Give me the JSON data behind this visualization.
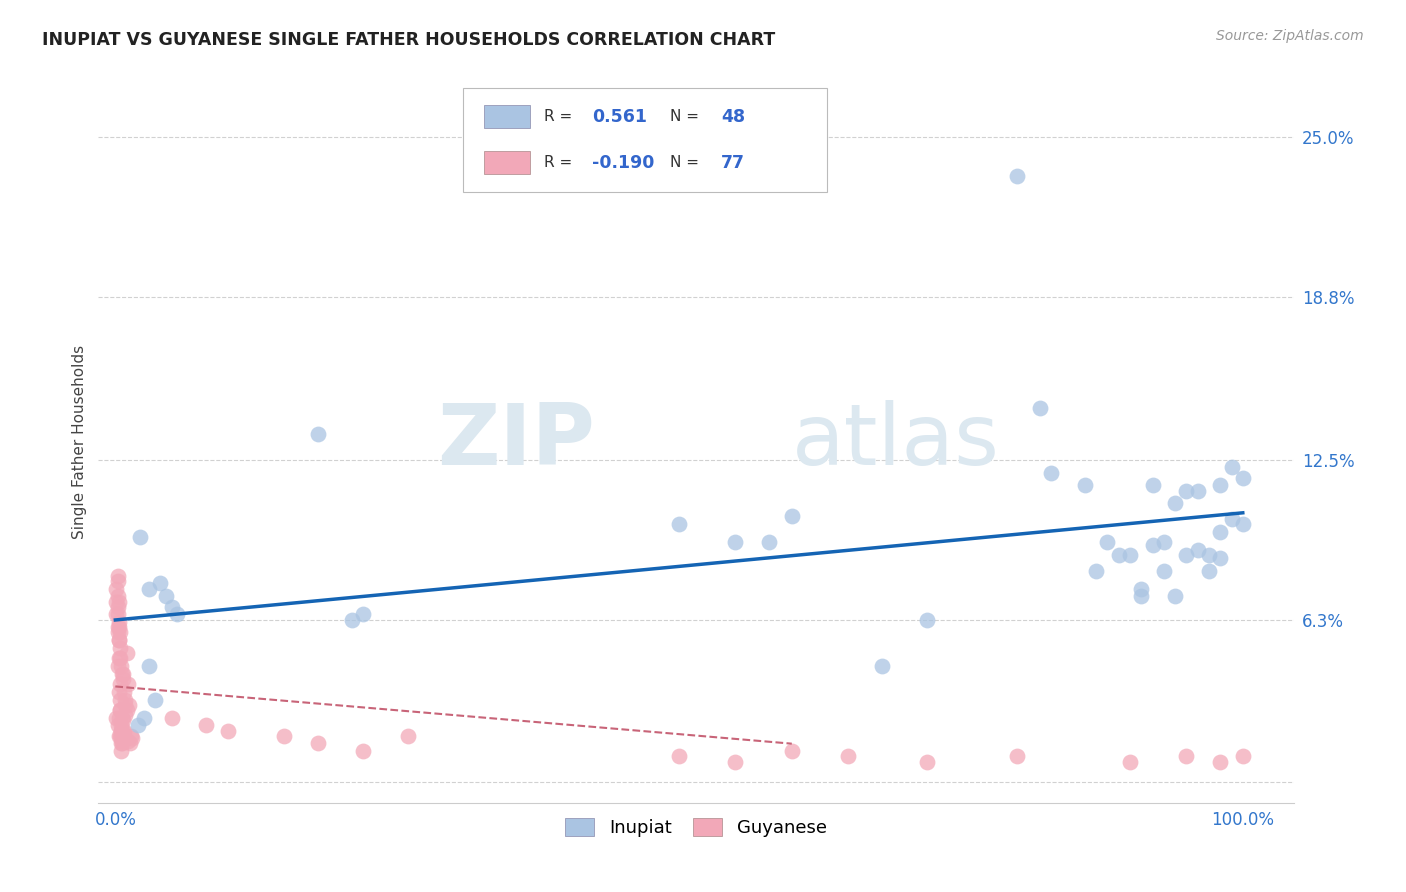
{
  "title": "INUPIAT VS GUYANESE SINGLE FATHER HOUSEHOLDS CORRELATION CHART",
  "source": "Source: ZipAtlas.com",
  "ylabel": "Single Father Households",
  "inupiat_R": "0.561",
  "inupiat_N": "48",
  "guyanese_R": "-0.190",
  "guyanese_N": "77",
  "inupiat_color": "#aac4e2",
  "guyanese_color": "#f2a8b8",
  "inupiat_line_color": "#1464b4",
  "guyanese_line_color": "#c86478",
  "background_color": "#ffffff",
  "watermark_zip": "ZIP",
  "watermark_atlas": "atlas",
  "ytick_values": [
    0.0,
    0.063,
    0.125,
    0.188,
    0.25
  ],
  "ytick_labels": [
    "",
    "6.3%",
    "12.5%",
    "18.8%",
    "25.0%"
  ],
  "inupiat_x": [
    0.022,
    0.03,
    0.04,
    0.045,
    0.05,
    0.055,
    0.03,
    0.025,
    0.02,
    0.035,
    0.18,
    0.21,
    0.22,
    0.5,
    0.55,
    0.58,
    0.6,
    0.68,
    0.72,
    0.8,
    0.82,
    0.83,
    0.86,
    0.87,
    0.88,
    0.89,
    0.9,
    0.91,
    0.92,
    0.92,
    0.93,
    0.94,
    0.95,
    0.95,
    0.96,
    0.97,
    0.97,
    0.98,
    0.98,
    0.99,
    0.99,
    1.0,
    1.0,
    0.94,
    0.96,
    0.98,
    0.93,
    0.91
  ],
  "inupiat_y": [
    0.095,
    0.075,
    0.077,
    0.072,
    0.068,
    0.065,
    0.045,
    0.025,
    0.022,
    0.032,
    0.135,
    0.063,
    0.065,
    0.1,
    0.093,
    0.093,
    0.103,
    0.045,
    0.063,
    0.235,
    0.145,
    0.12,
    0.115,
    0.082,
    0.093,
    0.088,
    0.088,
    0.072,
    0.115,
    0.092,
    0.093,
    0.072,
    0.113,
    0.088,
    0.113,
    0.082,
    0.088,
    0.115,
    0.097,
    0.122,
    0.102,
    0.118,
    0.1,
    0.108,
    0.09,
    0.087,
    0.082,
    0.075
  ],
  "guyanese_x": [
    0.001,
    0.002,
    0.003,
    0.004,
    0.005,
    0.006,
    0.007,
    0.008,
    0.009,
    0.01,
    0.011,
    0.012,
    0.013,
    0.014,
    0.015,
    0.003,
    0.005,
    0.007,
    0.009,
    0.011,
    0.002,
    0.004,
    0.006,
    0.008,
    0.01,
    0.003,
    0.005,
    0.007,
    0.009,
    0.002,
    0.004,
    0.006,
    0.008,
    0.003,
    0.005,
    0.007,
    0.002,
    0.004,
    0.006,
    0.003,
    0.005,
    0.002,
    0.004,
    0.003,
    0.005,
    0.002,
    0.004,
    0.003,
    0.002,
    0.004,
    0.001,
    0.003,
    0.005,
    0.002,
    0.004,
    0.001,
    0.003,
    0.002,
    0.001,
    0.05,
    0.08,
    0.1,
    0.15,
    0.18,
    0.22,
    0.26,
    0.5,
    0.55,
    0.6,
    0.65,
    0.72,
    0.8,
    0.9,
    0.95,
    0.98,
    1.0
  ],
  "guyanese_y": [
    0.025,
    0.022,
    0.018,
    0.028,
    0.02,
    0.016,
    0.024,
    0.02,
    0.026,
    0.028,
    0.016,
    0.03,
    0.015,
    0.018,
    0.017,
    0.035,
    0.022,
    0.04,
    0.032,
    0.038,
    0.045,
    0.048,
    0.042,
    0.035,
    0.05,
    0.055,
    0.018,
    0.042,
    0.03,
    0.06,
    0.058,
    0.015,
    0.018,
    0.062,
    0.015,
    0.02,
    0.068,
    0.052,
    0.025,
    0.07,
    0.045,
    0.058,
    0.032,
    0.055,
    0.02,
    0.065,
    0.028,
    0.048,
    0.072,
    0.038,
    0.075,
    0.06,
    0.012,
    0.08,
    0.018,
    0.065,
    0.025,
    0.078,
    0.07,
    0.025,
    0.022,
    0.02,
    0.018,
    0.015,
    0.012,
    0.018,
    0.01,
    0.008,
    0.012,
    0.01,
    0.008,
    0.01,
    0.008,
    0.01,
    0.008,
    0.01
  ]
}
